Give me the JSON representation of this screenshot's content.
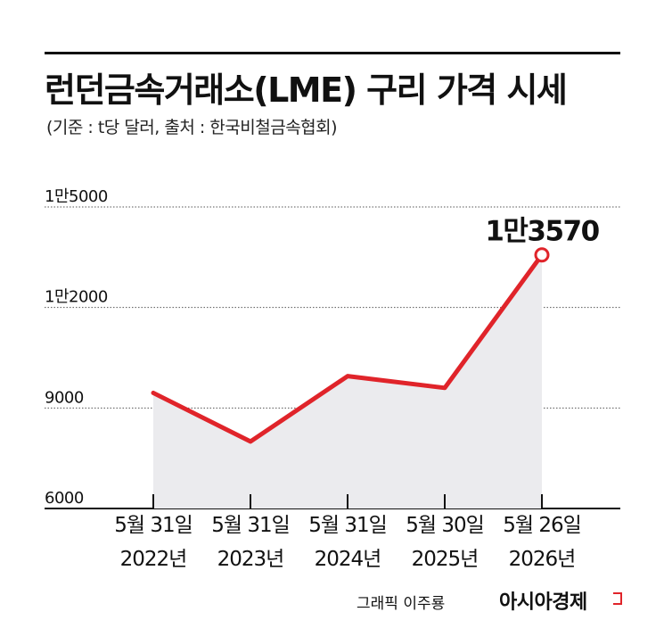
{
  "chart_data": {
    "type": "area",
    "title": "런던금속거래소(LME) 구리 가격 시세",
    "subtitle": "(기준 : t당 달러, 출처 : 한국비철금속협회)",
    "unit": "USD per tonne",
    "categories": [
      [
        "5월 31일",
        "2022년"
      ],
      [
        "5월 31일",
        "2023년"
      ],
      [
        "5월 31일",
        "2024년"
      ],
      [
        "5월 30일",
        "2025년"
      ],
      [
        "5월 26일",
        "2026년"
      ]
    ],
    "values": [
      9450,
      8000,
      9950,
      9600,
      13570
    ],
    "ylim": [
      6000,
      15000
    ],
    "yticks": [
      6000,
      9000,
      12000,
      15000
    ],
    "ytick_labels": [
      "6000",
      "9000",
      "1만2000",
      "1만5000"
    ],
    "annotation": "1만3570",
    "colors": {
      "line": "#e0242a",
      "area": "#ebebee",
      "grid": "#555555",
      "marker_fill": "#ffffff"
    },
    "grid": true
  },
  "footer": {
    "credit": "그래픽 이주룡",
    "brand": "아시아경제",
    "brand_color": "#e0242a"
  }
}
